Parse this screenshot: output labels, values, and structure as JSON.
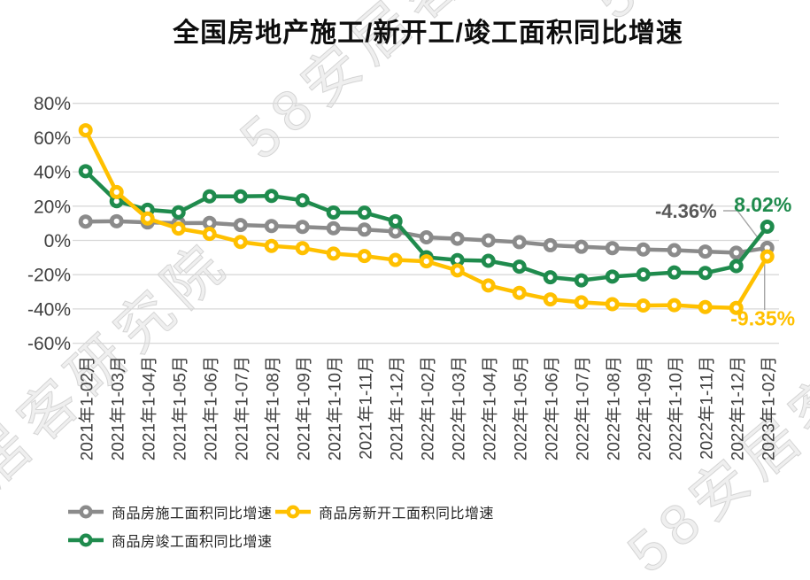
{
  "title": "全国房地产施工/新开工/竣工面积同比增速",
  "watermark": "58安居客研究院",
  "chart_data": {
    "type": "line",
    "title": "全国房地产施工/新开工/竣工面积同比增速",
    "categories": [
      "2021年1-02月",
      "2021年1-03月",
      "2021年1-04月",
      "2021年1-05月",
      "2021年1-06月",
      "2021年1-07月",
      "2021年1-08月",
      "2021年1-09月",
      "2021年1-10月",
      "2021年1-11月",
      "2021年1-12月",
      "2022年1-02月",
      "2022年1-03月",
      "2022年1-04月",
      "2022年1-05月",
      "2022年1-06月",
      "2022年1-07月",
      "2022年1-08月",
      "2022年1-09月",
      "2022年1-10月",
      "2022年1-11月",
      "2022年1-12月",
      "2023年1-02月"
    ],
    "series": [
      {
        "name": "商品房施工面积同比增速",
        "color": "#8B8B8B",
        "values": [
          11.0,
          11.2,
          10.5,
          10.1,
          10.2,
          9.0,
          8.4,
          7.9,
          7.1,
          6.3,
          5.2,
          1.8,
          1.0,
          0.0,
          -1.0,
          -2.8,
          -3.7,
          -4.5,
          -5.3,
          -5.7,
          -6.5,
          -7.2,
          -4.36
        ]
      },
      {
        "name": "商品房新开工面积同比增速",
        "color": "#FFC000",
        "values": [
          64.3,
          28.2,
          12.8,
          6.9,
          3.8,
          -0.9,
          -3.2,
          -4.5,
          -7.7,
          -9.1,
          -11.4,
          -12.2,
          -17.5,
          -26.3,
          -30.6,
          -34.4,
          -36.1,
          -37.2,
          -38.0,
          -37.8,
          -38.9,
          -39.4,
          -9.35
        ]
      },
      {
        "name": "商品房竣工面积同比增速",
        "color": "#1F8B4D",
        "values": [
          40.4,
          22.9,
          17.9,
          16.4,
          25.7,
          25.7,
          26.0,
          23.4,
          16.3,
          16.2,
          11.2,
          -9.8,
          -11.5,
          -11.9,
          -15.3,
          -21.5,
          -23.3,
          -21.1,
          -19.9,
          -18.7,
          -19.0,
          -15.0,
          8.02
        ]
      }
    ],
    "ylim": [
      -60,
      80
    ],
    "yticks": [
      80,
      60,
      40,
      20,
      0,
      -20,
      -40,
      -60
    ],
    "ytick_labels": [
      "80%",
      "60%",
      "40%",
      "20%",
      "0%",
      "-20%",
      "-40%",
      "-60%"
    ],
    "grid": true,
    "legend_position": "bottom",
    "annotations": [
      {
        "text": "-4.36%",
        "series": 0,
        "color": "#595959"
      },
      {
        "text": "8.02%",
        "series": 2,
        "color": "#1F8B4D"
      },
      {
        "text": "-9.35%",
        "series": 1,
        "color": "#FFC000"
      }
    ]
  }
}
